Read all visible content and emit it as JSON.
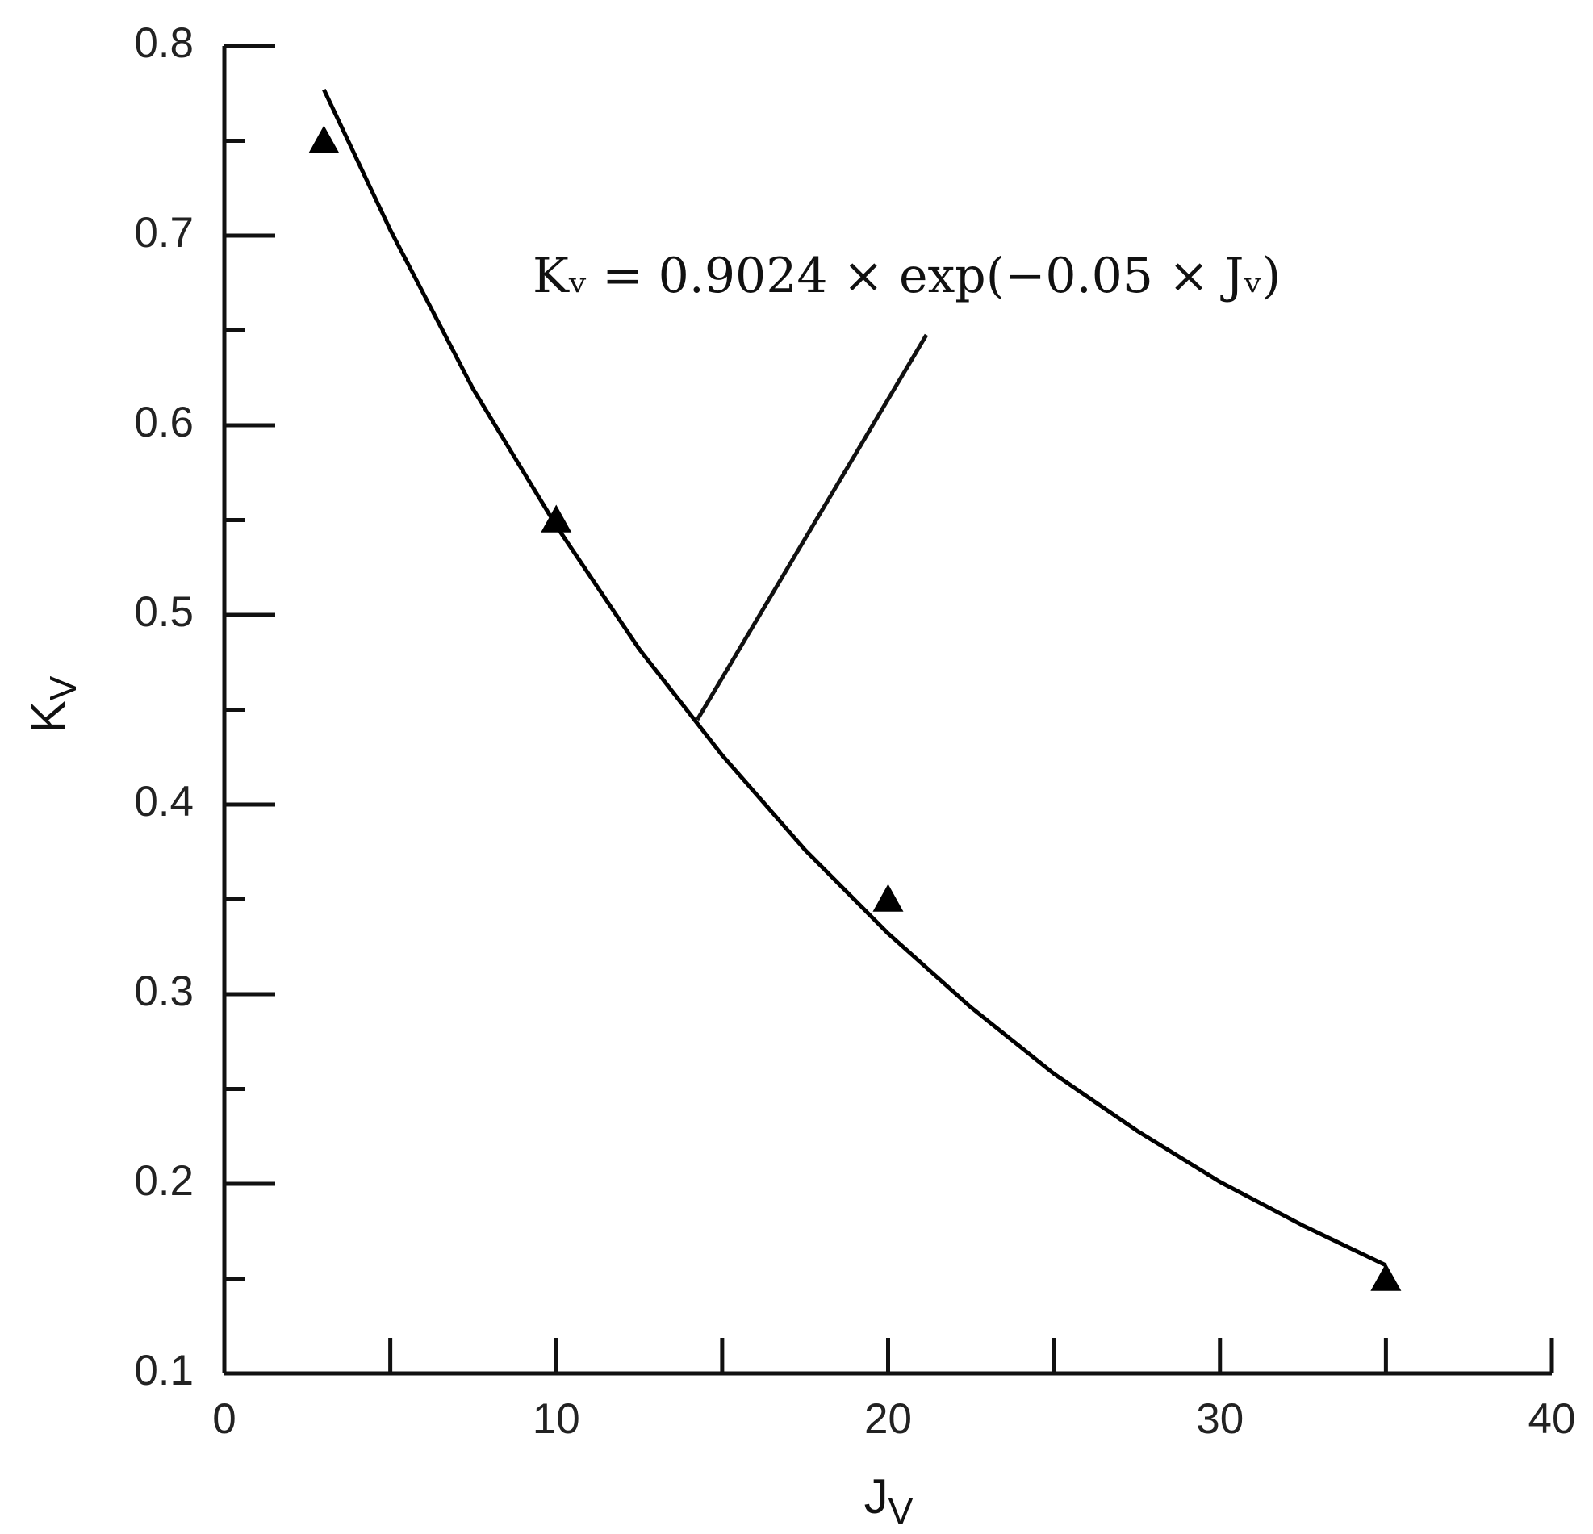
{
  "chart_data": {
    "type": "scatter",
    "xlabel": {
      "main": "J",
      "sub": "V"
    },
    "ylabel": {
      "main": "K",
      "sub": "V"
    },
    "annotation": "Kᵥ = 0.9024 × exp(−0.05 × Jᵥ)",
    "xlim": [
      0,
      40
    ],
    "xticks": [
      0,
      10,
      20,
      30,
      40
    ],
    "xminorticks": [
      5,
      15,
      25,
      35
    ],
    "ylim": [
      0.1,
      0.8
    ],
    "yticks": [
      0.1,
      0.2,
      0.3,
      0.4,
      0.5,
      0.6,
      0.7,
      0.8
    ],
    "yminorticks": [
      0.15,
      0.25,
      0.35,
      0.45,
      0.55,
      0.65,
      0.75
    ],
    "series": [
      {
        "kind": "points",
        "color": "#000000",
        "x": [
          3,
          10,
          20,
          35
        ],
        "values": [
          0.75,
          0.55,
          0.35,
          0.15
        ]
      },
      {
        "kind": "line",
        "color": "#000000",
        "x": [
          3,
          5,
          7.5,
          10,
          12.5,
          15,
          17.5,
          20,
          22.5,
          25,
          27.5,
          30,
          32.5,
          35
        ],
        "values": [
          0.777,
          0.703,
          0.619,
          0.547,
          0.482,
          0.426,
          0.376,
          0.332,
          0.293,
          0.258,
          0.228,
          0.201,
          0.178,
          0.157
        ]
      }
    ]
  }
}
